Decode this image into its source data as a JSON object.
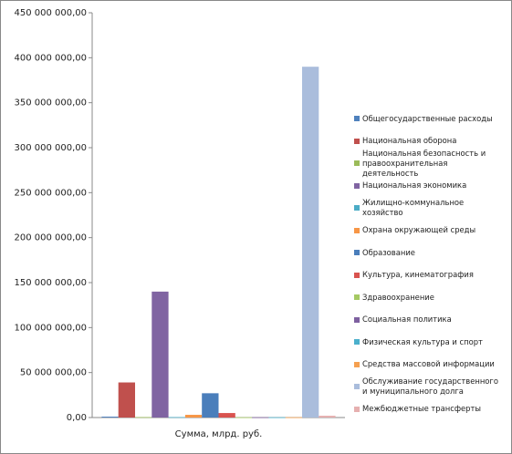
{
  "chart_data": {
    "type": "bar",
    "categories": [
      "Сумма, млрд. руб."
    ],
    "ylim": [
      0,
      450000000
    ],
    "yticks": [
      {
        "value": 0,
        "label": "0,00"
      },
      {
        "value": 50000000,
        "label": "50 000 000,00"
      },
      {
        "value": 100000000,
        "label": "100 000 000,00"
      },
      {
        "value": 150000000,
        "label": "150 000 000,00"
      },
      {
        "value": 200000000,
        "label": "200 000 000,00"
      },
      {
        "value": 250000000,
        "label": "250 000 000,00"
      },
      {
        "value": 300000000,
        "label": "300 000 000,00"
      },
      {
        "value": 350000000,
        "label": "350 000 000,00"
      },
      {
        "value": 400000000,
        "label": "400 000 000,00"
      },
      {
        "value": 450000000,
        "label": "450 000 000,00"
      }
    ],
    "grid": false,
    "legend": "right",
    "series": [
      {
        "name": "Общегосударственные расходы",
        "color": "#4F81BD",
        "values": [
          1000000
        ]
      },
      {
        "name": "Национальная оборона",
        "color": "#C0504D",
        "values": [
          39000000
        ]
      },
      {
        "name": "Национальная безопасность и правоохранительная деятельность",
        "color": "#9BBB59",
        "values": [
          500000
        ]
      },
      {
        "name": "Национальная экономика",
        "color": "#8064A2",
        "values": [
          140000000
        ]
      },
      {
        "name": "Жилищно-коммунальное хозяйство",
        "color": "#4BACC6",
        "values": [
          500000
        ]
      },
      {
        "name": "Охрана окружающей среды",
        "color": "#F79646",
        "values": [
          3000000
        ]
      },
      {
        "name": "Образование",
        "color": "#4A7EBB",
        "values": [
          27000000
        ]
      },
      {
        "name": "Культура, кинематография",
        "color": "#D9534F",
        "values": [
          5000000
        ]
      },
      {
        "name": "Здравоохранение",
        "color": "#A5C963",
        "values": [
          300000
        ]
      },
      {
        "name": "Социальная политика",
        "color": "#7E60A0",
        "values": [
          300000
        ]
      },
      {
        "name": "Физическая культура и спорт",
        "color": "#4BB0CC",
        "values": [
          300000
        ]
      },
      {
        "name": "Средства массовой информации",
        "color": "#F5A050",
        "values": [
          300000
        ]
      },
      {
        "name": "Обслуживание государственного и муниципального долга",
        "color": "#AABDDC",
        "values": [
          390000000
        ]
      },
      {
        "name": "Межбюджетные трансферты",
        "color": "#E6B0B0",
        "values": [
          2000000
        ]
      }
    ]
  }
}
